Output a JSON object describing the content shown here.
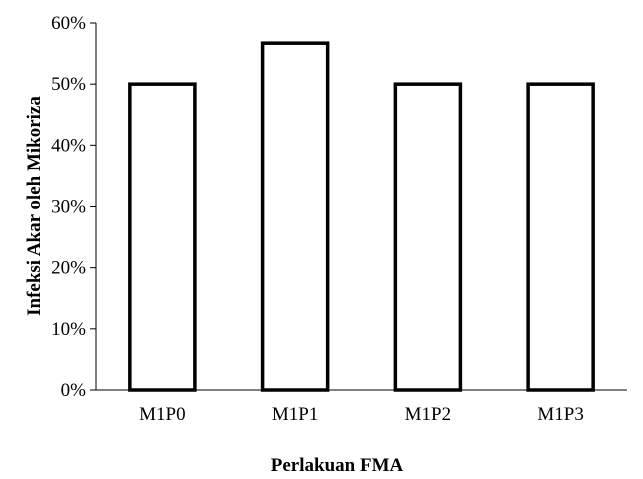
{
  "chart_data": {
    "type": "bar",
    "title": "",
    "xlabel": "Perlakuan FMA",
    "ylabel": "Infeksi Akar oleh Mikoriza",
    "categories": [
      "M1P0",
      "M1P1",
      "M1P2",
      "M1P3"
    ],
    "values": [
      50,
      56.7,
      50,
      50
    ],
    "ylim": [
      0,
      60
    ],
    "yticks": [
      0,
      10,
      20,
      30,
      40,
      50,
      60
    ],
    "ytick_labels": [
      "0%",
      "10%",
      "20%",
      "30%",
      "40%",
      "50%",
      "60%"
    ],
    "grid": false,
    "legend": "none",
    "bar_fill": "#ffffff",
    "bar_stroke": "#000000",
    "axis_color": "#000000"
  }
}
